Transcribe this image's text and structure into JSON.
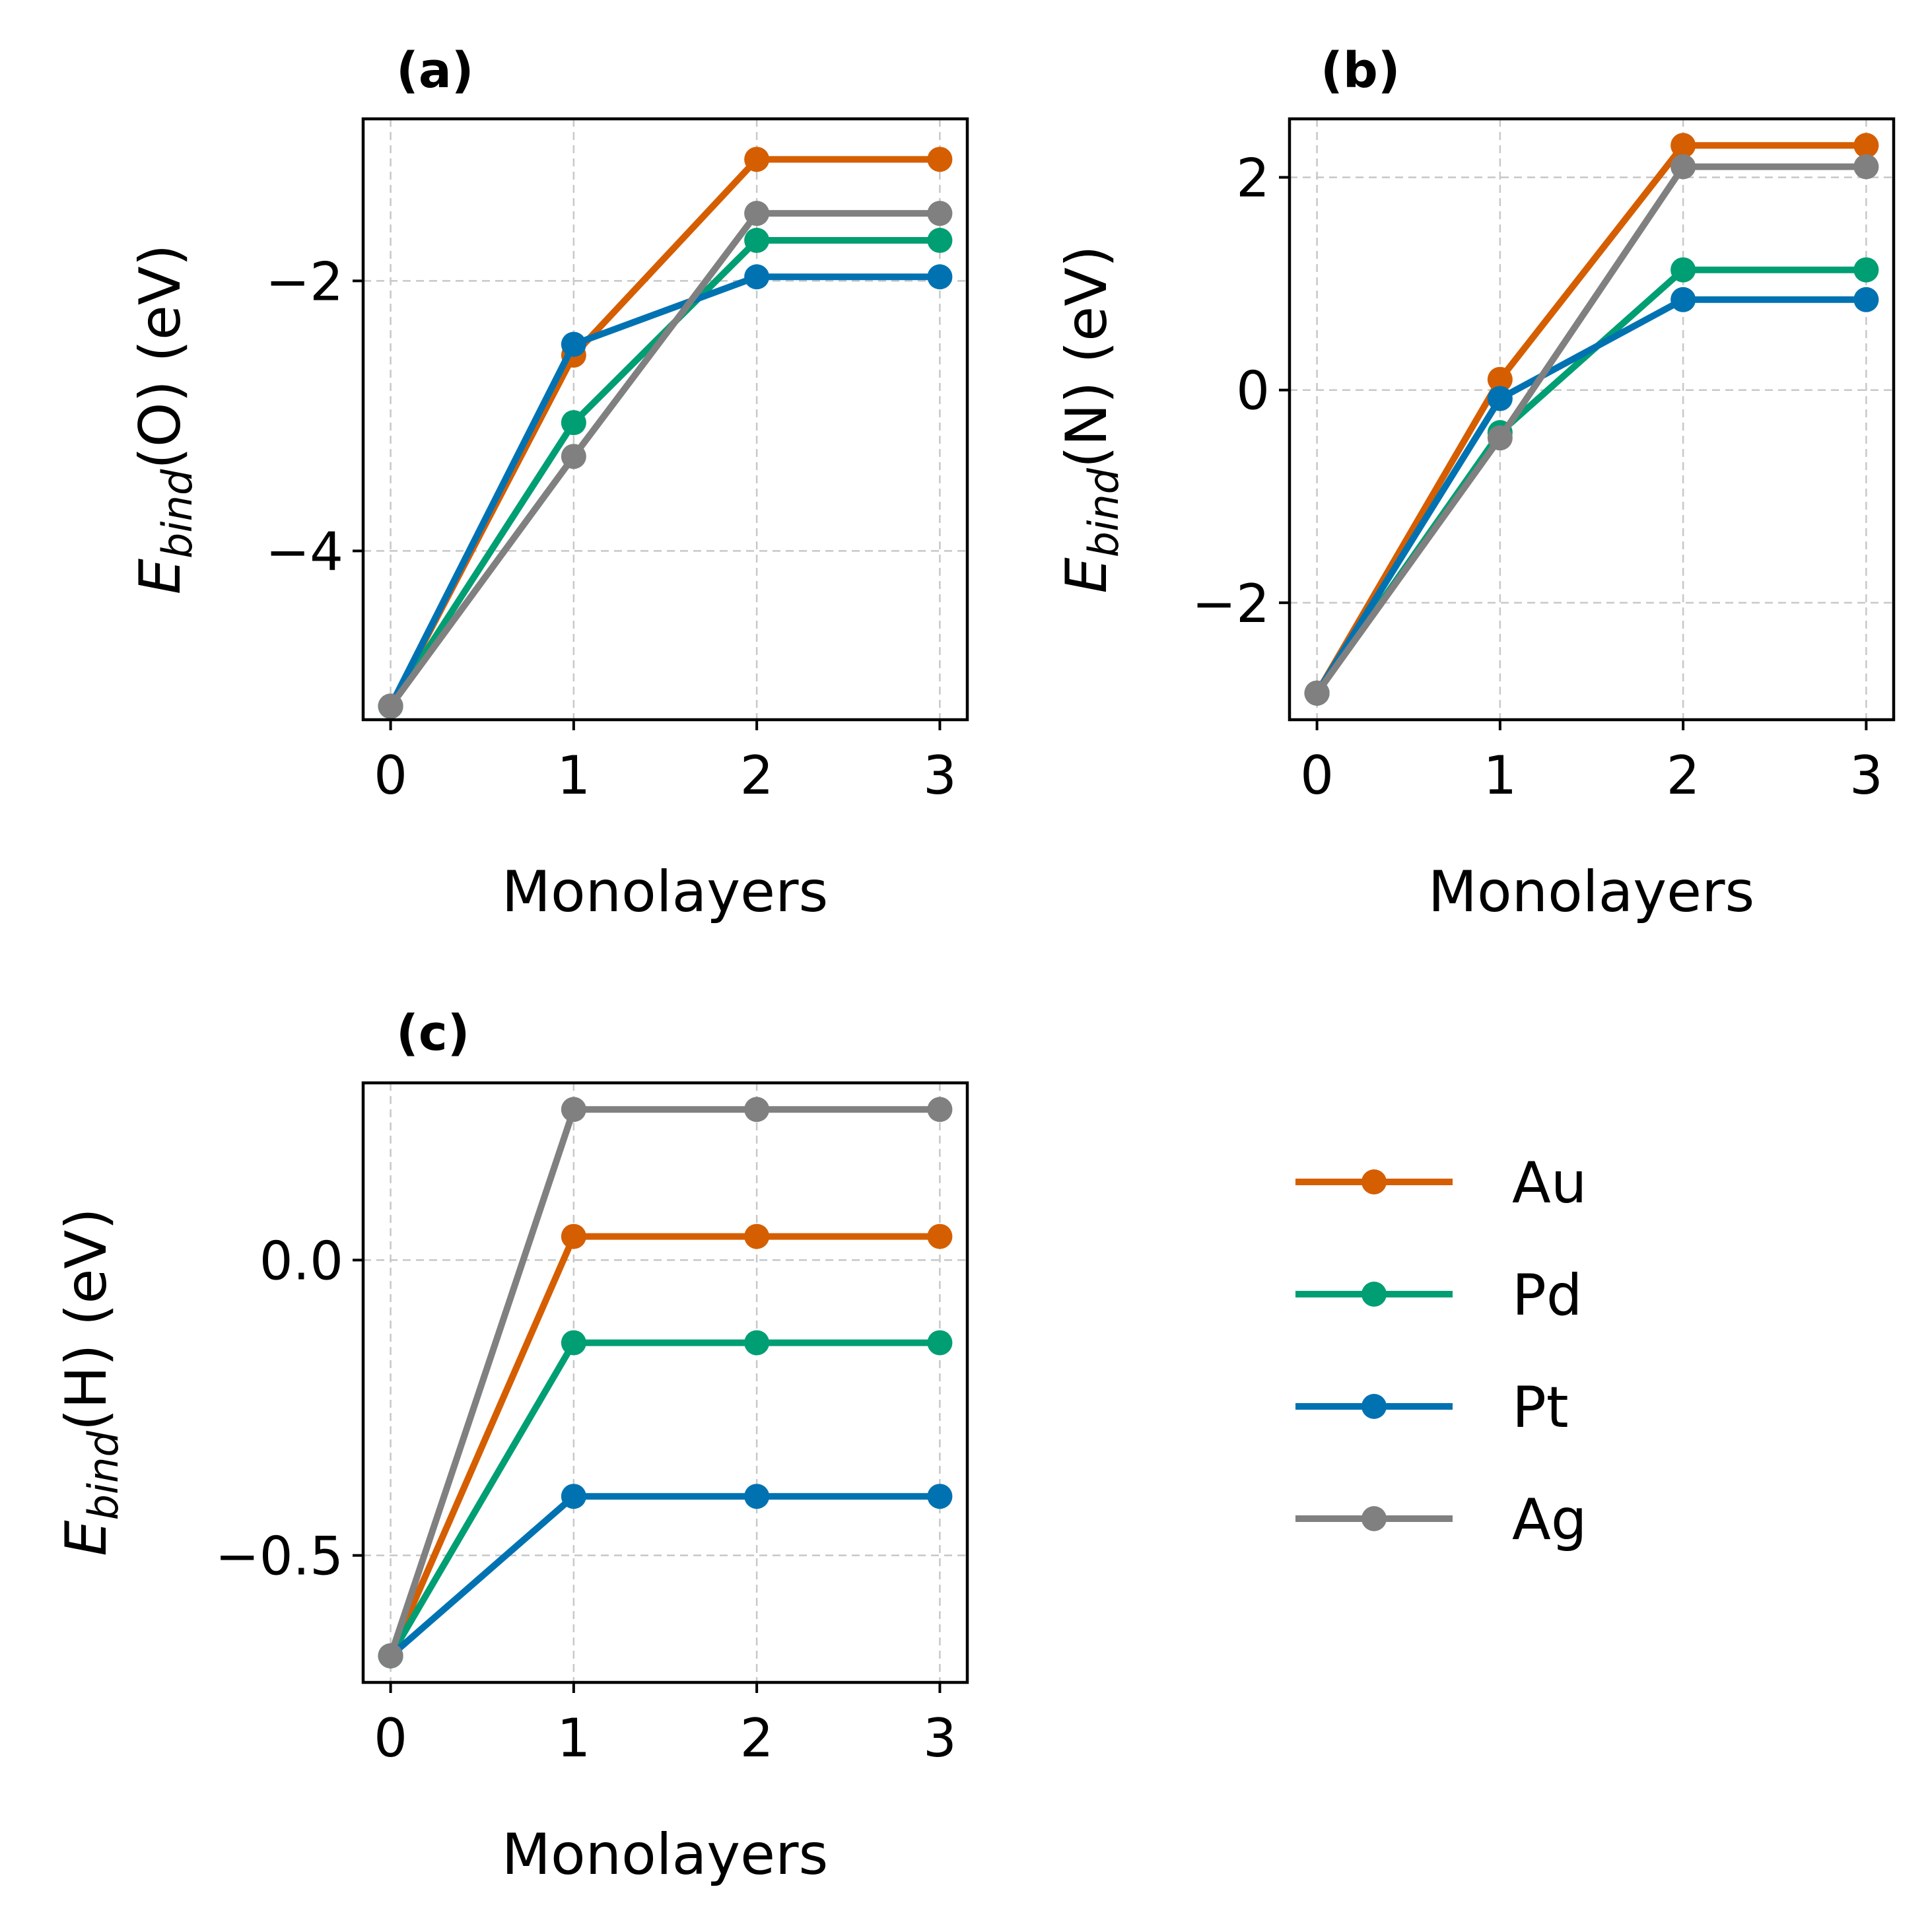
{
  "colors": {
    "Au": "#d55e00",
    "Pd": "#009e73",
    "Pt": "#0072b2",
    "Ag": "#808080"
  },
  "legend": {
    "entries": [
      "Au",
      "Pd",
      "Pt",
      "Ag"
    ]
  },
  "chart_data": [
    {
      "id": "a",
      "type": "line",
      "title": "(a)",
      "xlabel": "Monolayers",
      "ylabel": "E_bind(O) (eV)",
      "ylabel_var": "E",
      "ylabel_sub": "bind",
      "ylabel_rest": "(O) (eV)",
      "xlim": [
        -0.15,
        3.15
      ],
      "ylim": [
        -5.25,
        -0.8
      ],
      "xticks": [
        0,
        1,
        2,
        3
      ],
      "xtick_labels": [
        "0",
        "1",
        "2",
        "3"
      ],
      "yticks": [
        -4,
        -2
      ],
      "ytick_labels": [
        "−4",
        "−2"
      ],
      "grid": true,
      "x": [
        0,
        1,
        2,
        3
      ],
      "series": [
        {
          "name": "Au",
          "values": [
            -5.15,
            -2.55,
            -1.1,
            -1.1
          ]
        },
        {
          "name": "Pd",
          "values": [
            -5.15,
            -3.05,
            -1.7,
            -1.7
          ]
        },
        {
          "name": "Pt",
          "values": [
            -5.15,
            -2.47,
            -1.97,
            -1.97
          ]
        },
        {
          "name": "Ag",
          "values": [
            -5.15,
            -3.3,
            -1.5,
            -1.5
          ]
        }
      ]
    },
    {
      "id": "b",
      "type": "line",
      "title": "(b)",
      "xlabel": "Monolayers",
      "ylabel": "E_bind(N) (eV)",
      "ylabel_var": "E",
      "ylabel_sub": "bind",
      "ylabel_rest": "(N) (eV)",
      "xlim": [
        -0.15,
        3.15
      ],
      "ylim": [
        -3.1,
        2.55
      ],
      "xticks": [
        0,
        1,
        2,
        3
      ],
      "xtick_labels": [
        "0",
        "1",
        "2",
        "3"
      ],
      "yticks": [
        -2,
        0,
        2
      ],
      "ytick_labels": [
        "−2",
        "0",
        "2"
      ],
      "grid": true,
      "x": [
        0,
        1,
        2,
        3
      ],
      "series": [
        {
          "name": "Au",
          "values": [
            -2.85,
            0.1,
            2.3,
            2.3
          ]
        },
        {
          "name": "Pd",
          "values": [
            -2.85,
            -0.4,
            1.13,
            1.13
          ]
        },
        {
          "name": "Pt",
          "values": [
            -2.85,
            -0.08,
            0.85,
            0.85
          ]
        },
        {
          "name": "Ag",
          "values": [
            -2.85,
            -0.45,
            2.1,
            2.1
          ]
        }
      ]
    },
    {
      "id": "c",
      "type": "line",
      "title": "(c)",
      "xlabel": "Monolayers",
      "ylabel": "E_bind(H) (eV)",
      "ylabel_var": "E",
      "ylabel_sub": "bind",
      "ylabel_rest": "(H) (eV)",
      "xlim": [
        -0.15,
        3.15
      ],
      "ylim": [
        -0.715,
        0.3
      ],
      "xticks": [
        0,
        1,
        2,
        3
      ],
      "xtick_labels": [
        "0",
        "1",
        "2",
        "3"
      ],
      "yticks": [
        -0.5,
        0.0
      ],
      "ytick_labels": [
        "−0.5",
        "0.0"
      ],
      "grid": true,
      "x": [
        0,
        1,
        2,
        3
      ],
      "series": [
        {
          "name": "Au",
          "values": [
            -0.67,
            0.04,
            0.04,
            0.04
          ]
        },
        {
          "name": "Pd",
          "values": [
            -0.67,
            -0.14,
            -0.14,
            -0.14
          ]
        },
        {
          "name": "Pt",
          "values": [
            -0.67,
            -0.4,
            -0.4,
            -0.4
          ]
        },
        {
          "name": "Ag",
          "values": [
            -0.67,
            0.255,
            0.255,
            0.255
          ]
        }
      ]
    }
  ]
}
